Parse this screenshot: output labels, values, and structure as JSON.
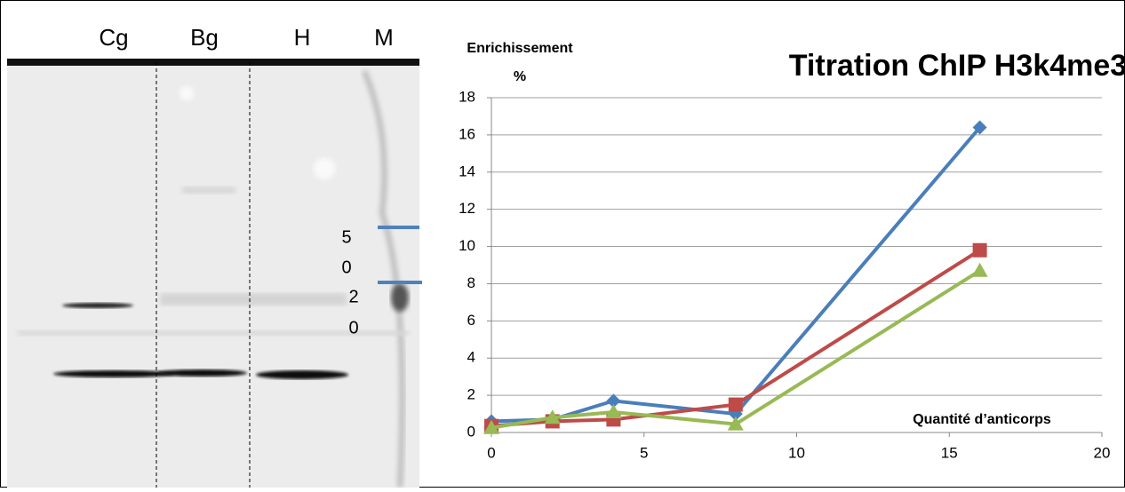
{
  "gel": {
    "lanes": [
      "Cg",
      "Bg",
      "H",
      "M"
    ],
    "marker_labels": [
      "5",
      "0",
      "2",
      "0"
    ]
  },
  "chart_data": {
    "type": "line",
    "title": "Titration ChIP H3k4me3",
    "y_label": [
      "Enrichissement",
      "%"
    ],
    "x_label": "Quantité d’anticorps",
    "x": [
      0,
      2,
      4,
      8,
      16
    ],
    "series": [
      {
        "color": "#4a7ebb",
        "marker": "diamond",
        "values": [
          0.6,
          0.7,
          1.7,
          1.0,
          16.4
        ]
      },
      {
        "color": "#be4b48",
        "marker": "square",
        "values": [
          0.35,
          0.6,
          0.7,
          1.5,
          9.8
        ]
      },
      {
        "color": "#98b954",
        "marker": "triangle",
        "values": [
          0.25,
          0.8,
          1.1,
          0.45,
          8.7
        ]
      }
    ],
    "xlim": [
      0,
      20
    ],
    "xticks": [
      0,
      5,
      10,
      15,
      20
    ],
    "ylim": [
      0,
      18
    ],
    "yticks": [
      0,
      2,
      4,
      6,
      8,
      10,
      12,
      14,
      16,
      18
    ],
    "grid": true
  }
}
